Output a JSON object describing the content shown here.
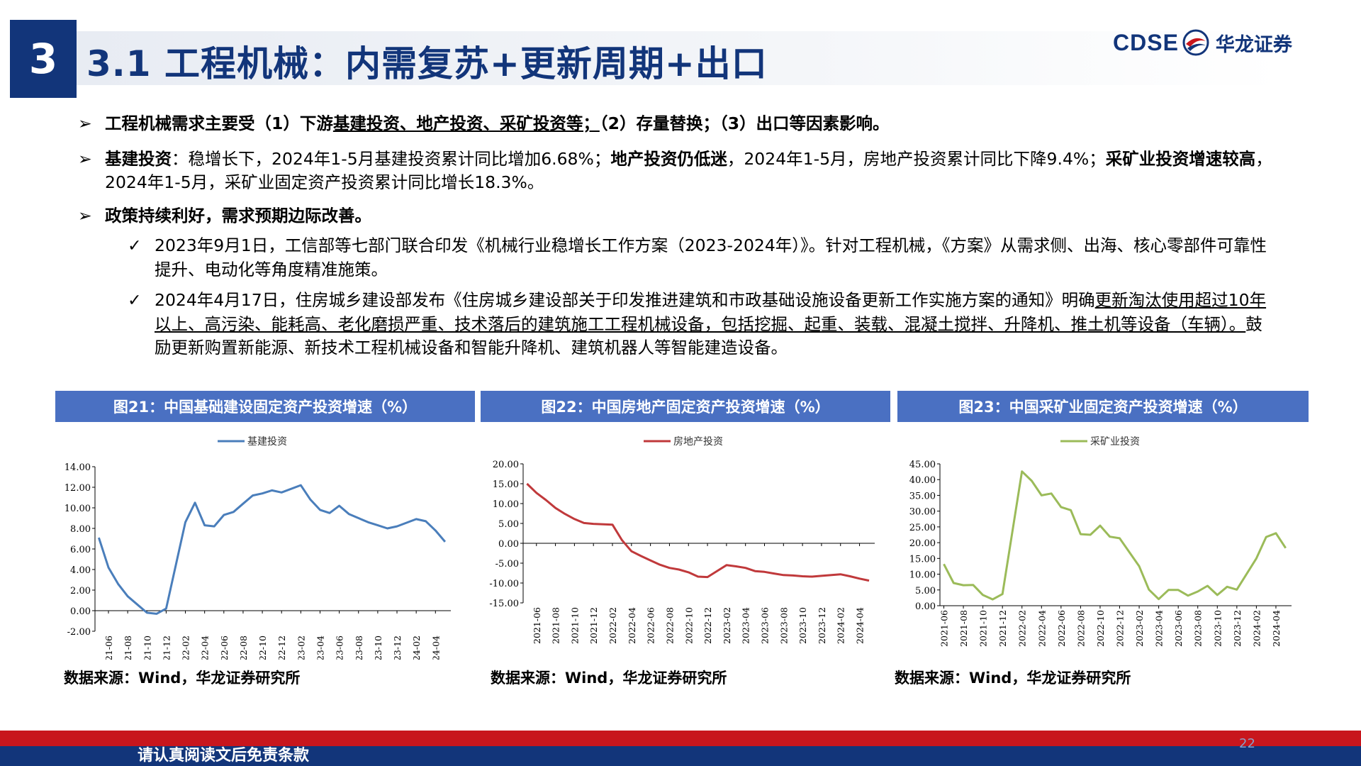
{
  "header": {
    "section_number": "3",
    "title": "3.1 工程机械：内需复苏+更新周期+出口",
    "logo_en": "CDSE",
    "logo_cn": "华龙证券"
  },
  "bullets": {
    "b1": {
      "mark": "➢",
      "p1": "工程机械需求主要受（1）下游",
      "p2": "基建投资、地产投资、采矿投资等；",
      "p3": "（2）存量替换；（3）出口等因素影响。"
    },
    "b2": {
      "mark": "➢",
      "p1": "基建投资",
      "p2": "：稳增长下，2024年1-5月基建投资累计同比增加6.68%；",
      "p3": "地产投资仍低迷",
      "p4": "，2024年1-5月，房地产投资累计同比下降9.4%；",
      "p5": "采矿业投资增速较高",
      "p6": "，2024年1-5月，采矿业固定资产投资累计同比增长18.3%。"
    },
    "b3": {
      "mark": "➢",
      "text": "政策持续利好，需求预期边际改善。"
    },
    "s1": {
      "mark": "✓",
      "text": "2023年9月1日，工信部等七部门联合印发《机械行业稳增长工作方案（2023-2024年）》。针对工程机械，《方案》从需求侧、出海、核心零部件可靠性提升、电动化等角度精准施策。"
    },
    "s2": {
      "mark": "✓",
      "p1": "2024年4月17日，住房城乡建设部发布《住房城乡建设部关于印发推进建筑和市政基础设施设备更新工作实施方案的通知》明确",
      "p2": "更新淘汰使用超过10年以上、高污染、能耗高、老化磨损严重、技术落后的建筑施工工程机械设备，包括挖掘、起重、装载、混凝土搅拌、升降机、推土机等设备（车辆）。",
      "p3": "鼓励更新购置新能源、新技术工程机械设备和智能升降机、建筑机器人等智能建造设备。"
    }
  },
  "panels": {
    "p1": {
      "title": "图21：中国基础建设固定资产投资增速（%）",
      "source": "数据来源：Wind，华龙证券研究所"
    },
    "p2": {
      "title": "图22：中国房地产固定资产投资增速（%）",
      "source": "数据来源：Wind，华龙证券研究所"
    },
    "p3": {
      "title": "图23：中国采矿业固定资产投资增速（%）",
      "source": "数据来源：Wind，华龙证券研究所"
    }
  },
  "footer": {
    "disclaimer": "请认真阅读文后免责条款",
    "page_number": "22"
  },
  "colors": {
    "navy": "#12357a",
    "panel_blue": "#4a70c2",
    "red": "#c8161d",
    "series_blue": "#4a7ebb",
    "series_red": "#c0393b",
    "series_green": "#9bbb59"
  },
  "chart_data": [
    {
      "type": "line",
      "legend": "基建投资",
      "legend_position": "top",
      "color": "#4a7ebb",
      "ylim": [
        -2,
        14
      ],
      "yticks": [
        "-2.00",
        "0.00",
        "2.00",
        "4.00",
        "6.00",
        "8.00",
        "10.00",
        "12.00",
        "14.00"
      ],
      "xticks": [
        "2021-06",
        "2021-08",
        "2021-10",
        "2021-12",
        "2022-02",
        "2022-04",
        "2022-06",
        "2022-08",
        "2022-10",
        "2022-12",
        "2023-02",
        "2023-04",
        "2023-06",
        "2023-08",
        "2023-10",
        "2023-12",
        "2024-02",
        "2024-04"
      ],
      "x": [
        "2021-05",
        "2021-06",
        "2021-07",
        "2021-08",
        "2021-09",
        "2021-10",
        "2021-11",
        "2021-12",
        "2022-02",
        "2022-03",
        "2022-04",
        "2022-05",
        "2022-06",
        "2022-07",
        "2022-08",
        "2022-09",
        "2022-10",
        "2022-11",
        "2022-12",
        "2023-02",
        "2023-03",
        "2023-04",
        "2023-05",
        "2023-06",
        "2023-07",
        "2023-08",
        "2023-09",
        "2023-10",
        "2023-11",
        "2023-12",
        "2024-02",
        "2024-03",
        "2024-04",
        "2024-05"
      ],
      "values": [
        7.1,
        4.2,
        2.6,
        1.4,
        0.6,
        -0.2,
        -0.3,
        0.2,
        8.6,
        10.5,
        8.3,
        8.2,
        9.3,
        9.6,
        10.4,
        11.2,
        11.4,
        11.7,
        11.5,
        12.2,
        10.8,
        9.8,
        9.5,
        10.2,
        9.4,
        9.0,
        8.6,
        8.3,
        8.0,
        8.2,
        8.9,
        8.7,
        7.8,
        6.7
      ]
    },
    {
      "type": "line",
      "legend": "房地产投资",
      "legend_position": "top",
      "color": "#c0393b",
      "ylim": [
        -15,
        20
      ],
      "yticks": [
        "-15.00",
        "-10.00",
        "-5.00",
        "0.00",
        "5.00",
        "10.00",
        "15.00",
        "20.00"
      ],
      "xticks": [
        "2021-06",
        "2021-08",
        "2021-10",
        "2021-12",
        "2022-02",
        "2022-04",
        "2022-06",
        "2022-08",
        "2022-10",
        "2022-12",
        "2023-02",
        "2023-04",
        "2023-06",
        "2023-08",
        "2023-10",
        "2023-12",
        "2024-02",
        "2024-04"
      ],
      "x": [
        "2021-05",
        "2021-06",
        "2021-07",
        "2021-08",
        "2021-09",
        "2021-10",
        "2021-11",
        "2021-12",
        "2022-02",
        "2022-03",
        "2022-04",
        "2022-05",
        "2022-06",
        "2022-07",
        "2022-08",
        "2022-09",
        "2022-10",
        "2022-11",
        "2022-12",
        "2023-02",
        "2023-03",
        "2023-04",
        "2023-05",
        "2023-06",
        "2023-07",
        "2023-08",
        "2023-09",
        "2023-10",
        "2023-11",
        "2023-12",
        "2024-02",
        "2024-03",
        "2024-04",
        "2024-05"
      ],
      "values": [
        15.0,
        12.7,
        10.9,
        8.9,
        7.4,
        6.1,
        5.1,
        4.9,
        4.7,
        0.8,
        -2.0,
        -3.2,
        -4.3,
        -5.4,
        -6.2,
        -6.6,
        -7.3,
        -8.4,
        -8.5,
        -5.5,
        -5.8,
        -6.2,
        -7.0,
        -7.2,
        -7.6,
        -8.0,
        -8.1,
        -8.3,
        -8.4,
        -8.2,
        -7.8,
        -8.3,
        -8.9,
        -9.4
      ]
    },
    {
      "type": "line",
      "legend": "采矿业投资",
      "legend_position": "top",
      "color": "#9bbb59",
      "ylim": [
        0,
        45
      ],
      "yticks": [
        "0.00",
        "5.00",
        "10.00",
        "15.00",
        "20.00",
        "25.00",
        "30.00",
        "35.00",
        "40.00",
        "45.00"
      ],
      "xticks": [
        "2021-06",
        "2021-08",
        "2021-10",
        "2021-12",
        "2022-02",
        "2022-04",
        "2022-06",
        "2022-08",
        "2022-10",
        "2022-12",
        "2023-02",
        "2023-04",
        "2023-06",
        "2023-08",
        "2023-10",
        "2023-12",
        "2024-02",
        "2024-04"
      ],
      "x": [
        "2021-06",
        "2021-07",
        "2021-08",
        "2021-09",
        "2021-10",
        "2021-11",
        "2021-12",
        "2022-02",
        "2022-03",
        "2022-04",
        "2022-05",
        "2022-06",
        "2022-07",
        "2022-08",
        "2022-09",
        "2022-10",
        "2022-11",
        "2022-12",
        "2023-02",
        "2023-03",
        "2023-04",
        "2023-05",
        "2023-06",
        "2023-07",
        "2023-08",
        "2023-09",
        "2023-10",
        "2023-11",
        "2023-12",
        "2024-02",
        "2024-03",
        "2024-04",
        "2024-05"
      ],
      "values": [
        13.2,
        7.2,
        6.5,
        6.6,
        3.4,
        2.0,
        3.7,
        42.6,
        39.6,
        35.0,
        35.6,
        31.3,
        30.3,
        22.7,
        22.5,
        25.4,
        21.9,
        21.4,
        12.5,
        5.1,
        2.1,
        5.0,
        5.0,
        3.2,
        4.5,
        6.3,
        3.4,
        6.0,
        5.1,
        15.0,
        21.8,
        23.0,
        18.3
      ]
    }
  ]
}
